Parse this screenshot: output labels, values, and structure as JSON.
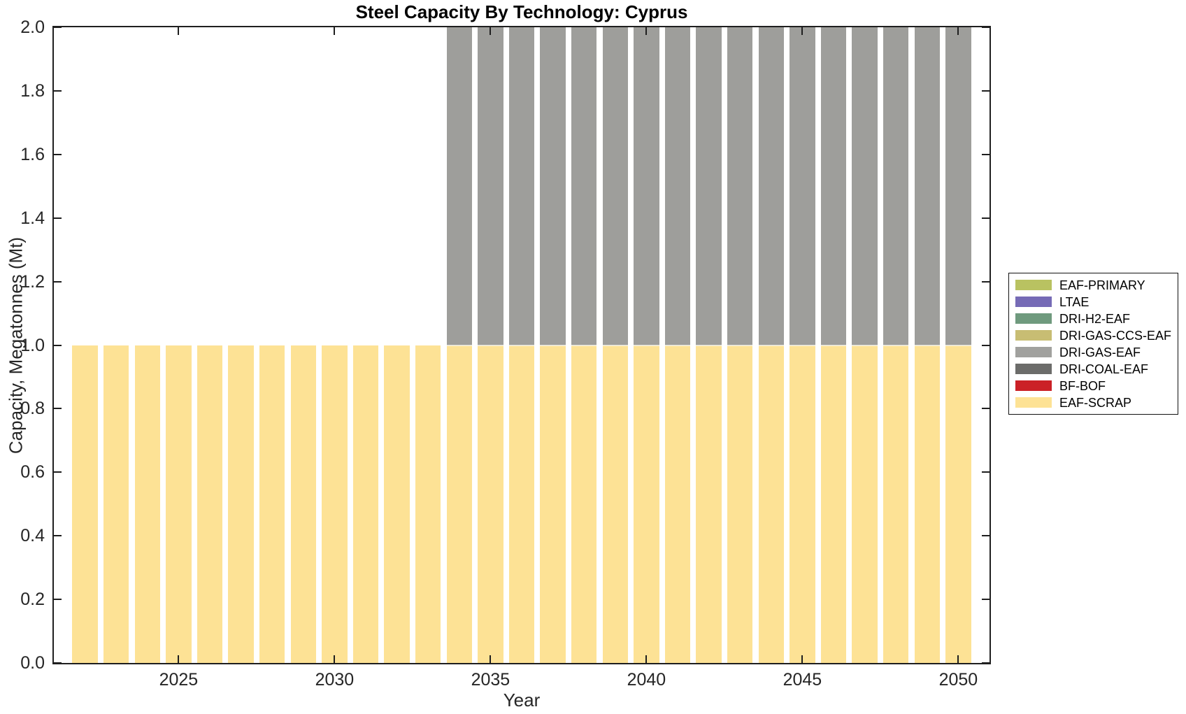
{
  "figure": {
    "title": "Steel Capacity By Technology: Cyprus",
    "xlabel": "Year",
    "ylabel": "Capacity, Megatonnes (Mt)"
  },
  "chart_data": {
    "type": "bar",
    "stacked": true,
    "title": "Steel Capacity By Technology: Cyprus",
    "xlabel": "Year",
    "ylabel": "Capacity, Megatonnes (Mt)",
    "x": [
      2022,
      2023,
      2024,
      2025,
      2026,
      2027,
      2028,
      2029,
      2030,
      2031,
      2032,
      2033,
      2034,
      2035,
      2036,
      2037,
      2038,
      2039,
      2040,
      2041,
      2042,
      2043,
      2044,
      2045,
      2046,
      2047,
      2048,
      2049,
      2050
    ],
    "series": [
      {
        "name": "EAF-SCRAP",
        "color": "#FDE295",
        "values": [
          1,
          1,
          1,
          1,
          1,
          1,
          1,
          1,
          1,
          1,
          1,
          1,
          1,
          1,
          1,
          1,
          1,
          1,
          1,
          1,
          1,
          1,
          1,
          1,
          1,
          1,
          1,
          1,
          1
        ]
      },
      {
        "name": "DRI-GAS-EAF",
        "color": "#9E9E9B",
        "values": [
          0,
          0,
          0,
          0,
          0,
          0,
          0,
          0,
          0,
          0,
          0,
          0,
          1,
          1,
          1,
          1,
          1,
          1,
          1,
          1,
          1,
          1,
          1,
          1,
          1,
          1,
          1,
          1,
          1
        ]
      }
    ],
    "xlim": [
      2021,
      2051
    ],
    "ylim": [
      0,
      2
    ],
    "bar_width": 0.82,
    "xticks": [
      2025,
      2030,
      2035,
      2040,
      2045,
      2050
    ],
    "xtick_labels": [
      "2025",
      "2030",
      "2035",
      "2040",
      "2045",
      "2050"
    ],
    "yticks": [
      0,
      0.2,
      0.4,
      0.6,
      0.8,
      1.0,
      1.2,
      1.4,
      1.6,
      1.8,
      2.0
    ],
    "ytick_labels": [
      "0.0",
      "0.2",
      "0.4",
      "0.6",
      "0.8",
      "1.0",
      "1.2",
      "1.4",
      "1.6",
      "1.8",
      "2.0"
    ],
    "grid": false,
    "legend_position": "right-outside"
  },
  "legend": {
    "items": [
      {
        "label": "EAF-PRIMARY",
        "color": "#B9C261"
      },
      {
        "label": "LTAE",
        "color": "#766BB6"
      },
      {
        "label": "DRI-H2-EAF",
        "color": "#6F9A7E"
      },
      {
        "label": "DRI-GAS-CCS-EAF",
        "color": "#C8BD73"
      },
      {
        "label": "DRI-GAS-EAF",
        "color": "#A1A19E"
      },
      {
        "label": "DRI-COAL-EAF",
        "color": "#6C6C6A"
      },
      {
        "label": "BF-BOF",
        "color": "#CB2127"
      },
      {
        "label": "EAF-SCRAP",
        "color": "#FDE295"
      }
    ]
  }
}
